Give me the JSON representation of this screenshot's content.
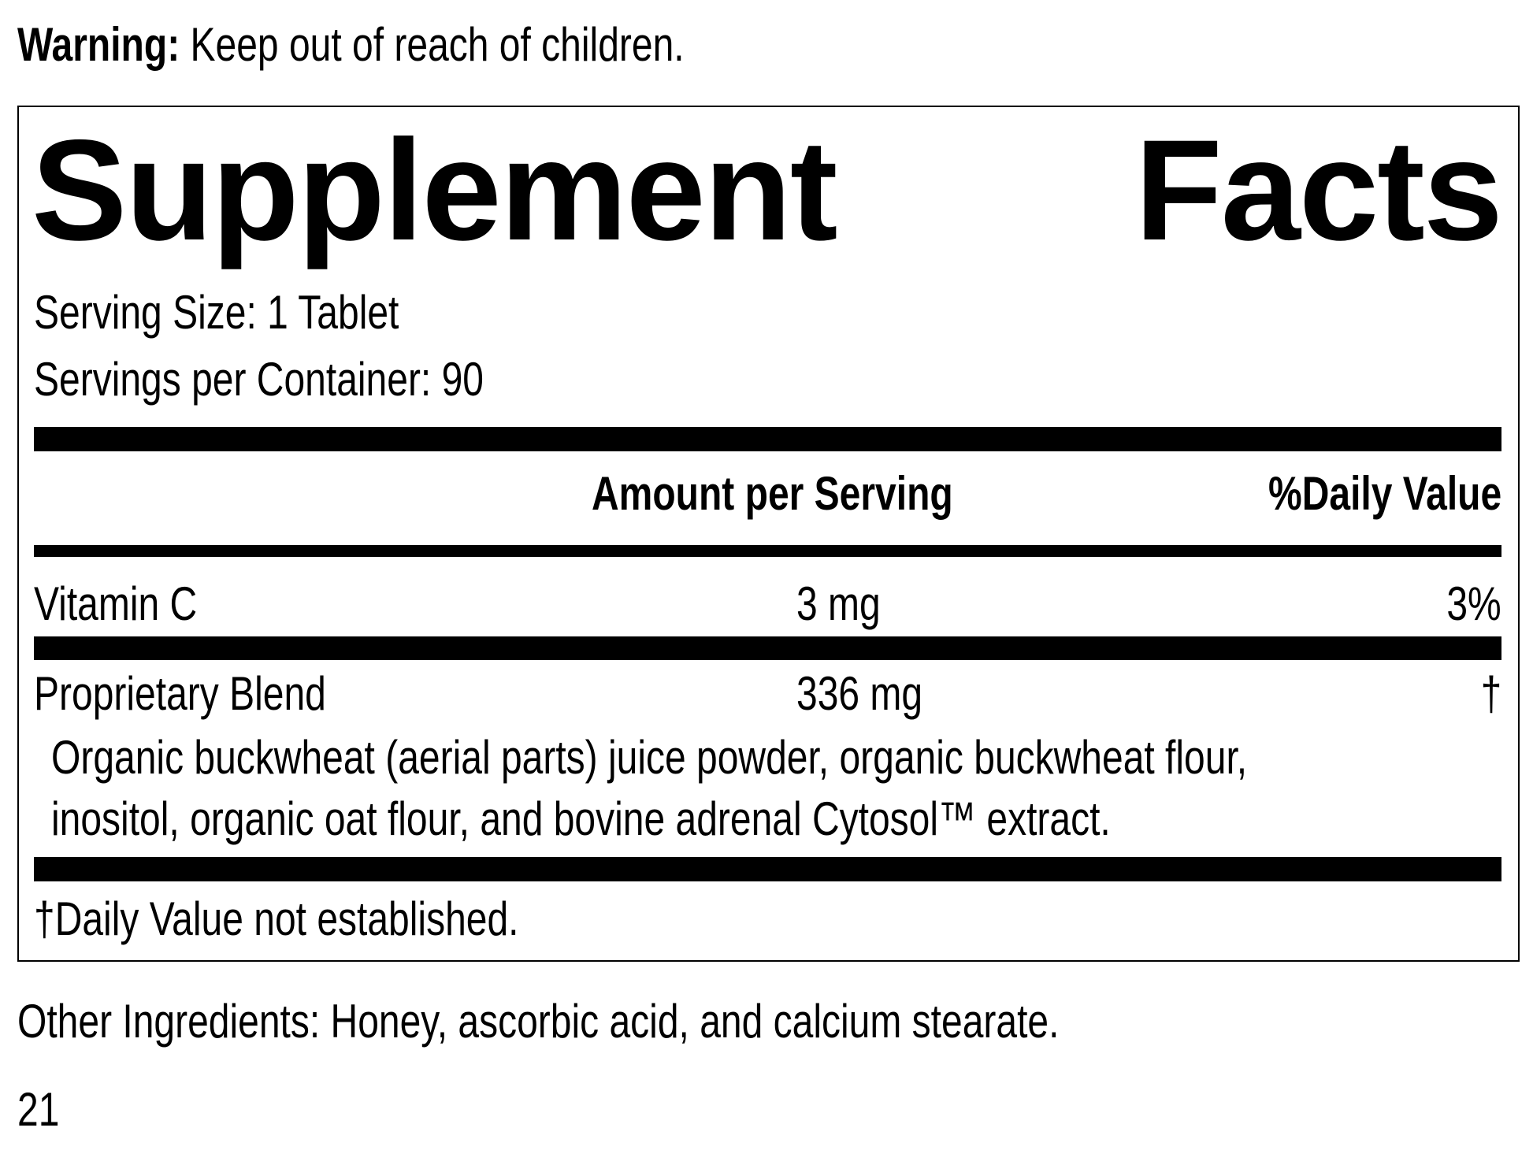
{
  "warning": {
    "label": "Warning:",
    "text": " Keep out of reach of children."
  },
  "facts": {
    "title_word1": "Supplement",
    "title_word2": "Facts",
    "serving_size": "Serving Size: 1 Tablet",
    "servings_per_container": "Servings per Container: 90",
    "headers": {
      "amount": "Amount per Serving",
      "daily_value": "%Daily Value"
    },
    "rows": [
      {
        "name": "Vitamin C",
        "amount": "3 mg",
        "dv": "3%"
      },
      {
        "name": "Proprietary Blend",
        "amount": "336 mg",
        "dv": "†"
      }
    ],
    "blend_ingredients": [
      "Organic buckwheat (aerial parts) juice powder, organic buckwheat flour,",
      "inositol, organic oat flour, and bovine adrenal Cytosol™ extract."
    ],
    "footnote": "†Daily Value not established."
  },
  "other_ingredients": "Other Ingredients: Honey, ascorbic acid, and calcium stearate.",
  "page_number": "21"
}
